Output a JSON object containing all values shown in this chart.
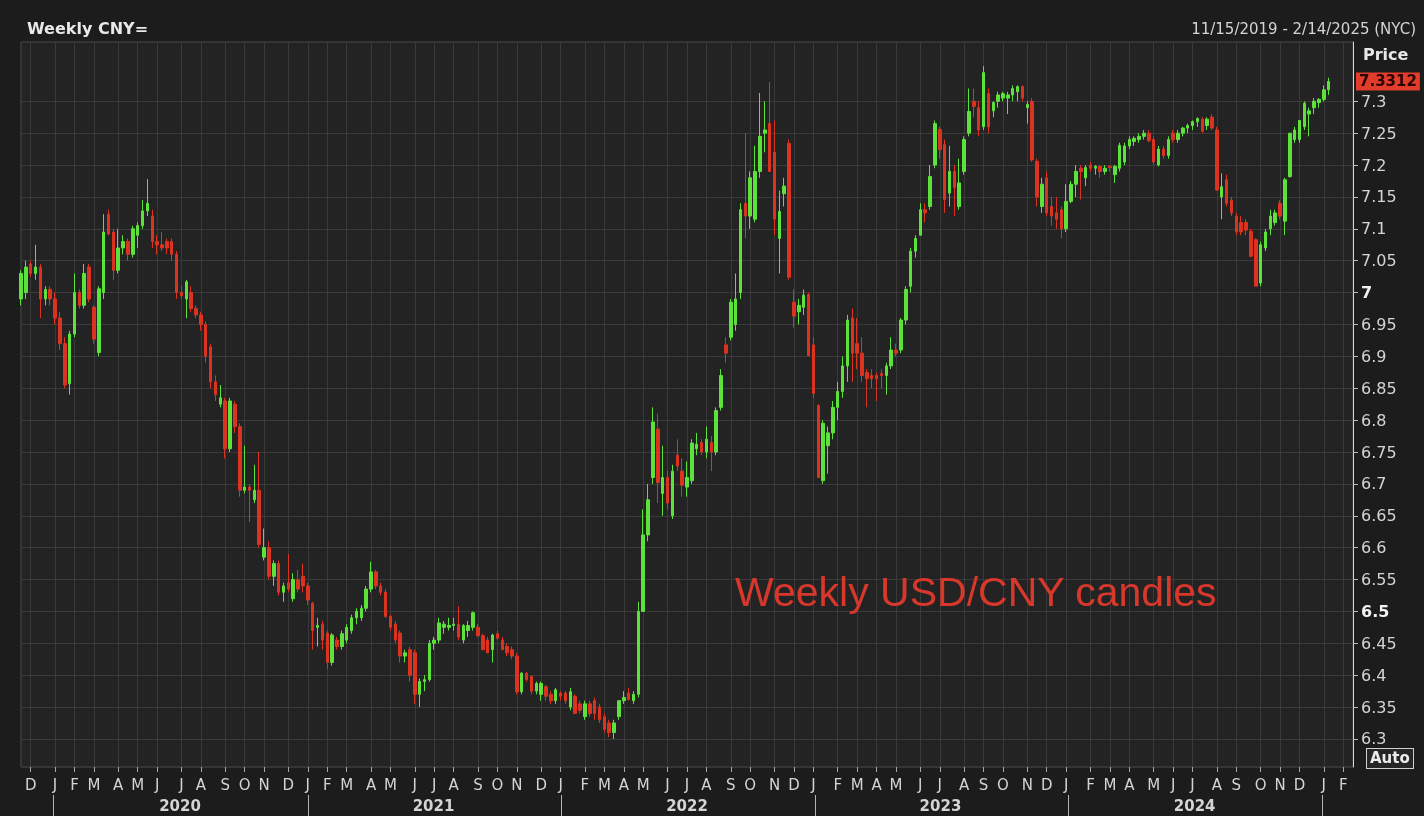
{
  "chart_data": {
    "type": "candlestick",
    "title": "Weekly CNY=",
    "subtitle": "11/15/2019 - 2/14/2025 (NYC)",
    "ylabel": "Price",
    "annotations": [
      "7.3312",
      "Weekly USD/CNY candles",
      "Auto"
    ],
    "categories": [
      null,
      null,
      "D",
      null,
      null,
      null,
      null,
      "J",
      null,
      null,
      null,
      "F",
      null,
      null,
      null,
      "M",
      null,
      null,
      null,
      null,
      "A",
      null,
      null,
      null,
      "M",
      null,
      null,
      null,
      "J",
      null,
      null,
      null,
      null,
      "J",
      null,
      null,
      null,
      "A",
      null,
      null,
      null,
      null,
      "S",
      null,
      null,
      null,
      "O",
      null,
      null,
      null,
      "N",
      null,
      null,
      null,
      null,
      "D",
      null,
      null,
      null,
      "J",
      null,
      null,
      null,
      "F",
      null,
      null,
      null,
      "M",
      null,
      null,
      null,
      null,
      "A",
      null,
      null,
      null,
      "M",
      null,
      null,
      null,
      null,
      "J",
      null,
      null,
      null,
      "J",
      null,
      null,
      null,
      "A",
      null,
      null,
      null,
      null,
      "S",
      null,
      null,
      null,
      "O",
      null,
      null,
      null,
      "N",
      null,
      null,
      null,
      null,
      "D",
      null,
      null,
      null,
      "J",
      null,
      null,
      null,
      null,
      "F",
      null,
      null,
      null,
      "M",
      null,
      null,
      null,
      "A",
      null,
      null,
      null,
      "M",
      null,
      null,
      null,
      null,
      "J",
      null,
      null,
      null,
      "J",
      null,
      null,
      null,
      "A",
      null,
      null,
      null,
      null,
      "S",
      null,
      null,
      null,
      "O",
      null,
      null,
      null,
      null,
      "N",
      null,
      null,
      null,
      "D",
      null,
      null,
      null,
      "J",
      null,
      null,
      null,
      null,
      "F",
      null,
      null,
      null,
      "M",
      null,
      null,
      null,
      "A",
      null,
      null,
      null,
      "M",
      null,
      null,
      null,
      null,
      "J",
      null,
      null,
      null,
      "J",
      null,
      null,
      null,
      null,
      "A",
      null,
      null,
      null,
      "S",
      null,
      null,
      null,
      "O",
      null,
      null,
      null,
      null,
      "N",
      null,
      null,
      null,
      "D",
      null,
      null,
      null,
      "J",
      null,
      null,
      null,
      null,
      "F",
      null,
      null,
      null,
      "M",
      null,
      null,
      null,
      "A",
      null,
      null,
      null,
      null,
      "M",
      null,
      null,
      null,
      "J",
      null,
      null,
      null,
      "J",
      null,
      null,
      null,
      null,
      "A",
      null,
      null,
      null,
      "S",
      null,
      null,
      null,
      null,
      "O",
      null,
      null,
      null,
      "N",
      null,
      null,
      null,
      "D",
      null,
      null,
      null,
      null,
      "J",
      null,
      null,
      null,
      "F",
      null,
      null
    ],
    "ohlc": [
      [
        6.99,
        7.035,
        6.98,
        7.03
      ],
      [
        7.0,
        7.05,
        6.99,
        7.04
      ],
      [
        7.045,
        7.05,
        7.025,
        7.03
      ],
      [
        7.03,
        7.075,
        7.02,
        7.04
      ],
      [
        7.04,
        7.045,
        6.96,
        6.99
      ],
      [
        6.99,
        7.01,
        6.98,
        7.005
      ],
      [
        7.005,
        7.01,
        6.98,
        6.99
      ],
      [
        6.99,
        7.0,
        6.95,
        6.96
      ],
      [
        6.96,
        6.97,
        6.91,
        6.92
      ],
      [
        6.92,
        6.93,
        6.85,
        6.855
      ],
      [
        6.857,
        6.94,
        6.84,
        6.935
      ],
      [
        6.935,
        7.03,
        6.93,
        7.0
      ],
      [
        7.0,
        7.005,
        6.975,
        6.98
      ],
      [
        6.98,
        7.045,
        6.975,
        7.03
      ],
      [
        7.04,
        7.045,
        6.985,
        6.99
      ],
      [
        6.977,
        6.98,
        6.92,
        6.927
      ],
      [
        6.906,
        7.01,
        6.9,
        7.006
      ],
      [
        7.0,
        7.123,
        6.99,
        7.095
      ],
      [
        7.123,
        7.13,
        7.09,
        7.092
      ],
      [
        7.095,
        7.1,
        7.02,
        7.035
      ],
      [
        7.035,
        7.1,
        7.03,
        7.07
      ],
      [
        7.07,
        7.09,
        7.06,
        7.08
      ],
      [
        7.08,
        7.085,
        7.05,
        7.06
      ],
      [
        7.06,
        7.105,
        7.055,
        7.1
      ],
      [
        7.09,
        7.11,
        7.07,
        7.105
      ],
      [
        7.105,
        7.145,
        7.1,
        7.128
      ],
      [
        7.128,
        7.178,
        7.12,
        7.14
      ],
      [
        7.12,
        7.13,
        7.07,
        7.08
      ],
      [
        7.08,
        7.09,
        7.06,
        7.075
      ],
      [
        7.075,
        7.095,
        7.065,
        7.07
      ],
      [
        7.08,
        7.085,
        7.06,
        7.07
      ],
      [
        7.08,
        7.085,
        7.05,
        7.06
      ],
      [
        7.06,
        7.065,
        6.99,
        7.0
      ],
      [
        7.0,
        7.01,
        6.99,
        6.995
      ],
      [
        6.99,
        7.02,
        6.96,
        7.017
      ],
      [
        7.0,
        7.01,
        6.97,
        6.975
      ],
      [
        6.975,
        6.98,
        6.96,
        6.965
      ],
      [
        6.965,
        6.97,
        6.94,
        6.95
      ],
      [
        6.95,
        6.955,
        6.89,
        6.9
      ],
      [
        6.915,
        6.92,
        6.85,
        6.86
      ],
      [
        6.86,
        6.87,
        6.83,
        6.84
      ],
      [
        6.825,
        6.855,
        6.82,
        6.835
      ],
      [
        6.83,
        6.835,
        6.74,
        6.755
      ],
      [
        6.755,
        6.835,
        6.75,
        6.83
      ],
      [
        6.825,
        6.83,
        6.78,
        6.79
      ],
      [
        6.79,
        6.795,
        6.68,
        6.69
      ],
      [
        6.69,
        6.76,
        6.685,
        6.695
      ],
      [
        6.695,
        6.7,
        6.64,
        6.69
      ],
      [
        6.675,
        6.73,
        6.67,
        6.69
      ],
      [
        6.69,
        6.75,
        6.6,
        6.605
      ],
      [
        6.585,
        6.63,
        6.58,
        6.6
      ],
      [
        6.6,
        6.61,
        6.55,
        6.555
      ],
      [
        6.555,
        6.58,
        6.54,
        6.575
      ],
      [
        6.575,
        6.58,
        6.525,
        6.53
      ],
      [
        6.53,
        6.545,
        6.515,
        6.54
      ],
      [
        6.545,
        6.59,
        6.53,
        6.535
      ],
      [
        6.52,
        6.56,
        6.515,
        6.55
      ],
      [
        6.55,
        6.565,
        6.53,
        6.535
      ],
      [
        6.555,
        6.575,
        6.53,
        6.54
      ],
      [
        6.54,
        6.545,
        6.51,
        6.518
      ],
      [
        6.513,
        6.515,
        6.44,
        6.47
      ],
      [
        6.475,
        6.49,
        6.445,
        6.478
      ],
      [
        6.48,
        6.485,
        6.44,
        6.455
      ],
      [
        6.466,
        6.47,
        6.41,
        6.42
      ],
      [
        6.42,
        6.466,
        6.415,
        6.463
      ],
      [
        6.455,
        6.46,
        6.44,
        6.445
      ],
      [
        6.445,
        6.47,
        6.44,
        6.465
      ],
      [
        6.455,
        6.48,
        6.45,
        6.475
      ],
      [
        6.47,
        6.495,
        6.465,
        6.49
      ],
      [
        6.49,
        6.505,
        6.48,
        6.5
      ],
      [
        6.49,
        6.51,
        6.485,
        6.505
      ],
      [
        6.505,
        6.54,
        6.5,
        6.535
      ],
      [
        6.535,
        6.578,
        6.53,
        6.562
      ],
      [
        6.562,
        6.565,
        6.535,
        6.54
      ],
      [
        6.54,
        6.545,
        6.525,
        6.53
      ],
      [
        6.53,
        6.535,
        6.49,
        6.492
      ],
      [
        6.492,
        6.495,
        6.47,
        6.475
      ],
      [
        6.48,
        6.485,
        6.45,
        6.455
      ],
      [
        6.466,
        6.47,
        6.42,
        6.43
      ],
      [
        6.43,
        6.44,
        6.42,
        6.435
      ],
      [
        6.44,
        6.445,
        6.39,
        6.4
      ],
      [
        6.435,
        6.44,
        6.355,
        6.37
      ],
      [
        6.37,
        6.395,
        6.35,
        6.39
      ],
      [
        6.39,
        6.4,
        6.375,
        6.393
      ],
      [
        6.393,
        6.455,
        6.39,
        6.45
      ],
      [
        6.45,
        6.46,
        6.44,
        6.455
      ],
      [
        6.455,
        6.49,
        6.45,
        6.482
      ],
      [
        6.475,
        6.485,
        6.465,
        6.48
      ],
      [
        6.475,
        6.49,
        6.47,
        6.478
      ],
      [
        6.478,
        6.49,
        6.47,
        6.48
      ],
      [
        6.48,
        6.508,
        6.455,
        6.46
      ],
      [
        6.455,
        6.48,
        6.45,
        6.478
      ],
      [
        6.47,
        6.485,
        6.46,
        6.478
      ],
      [
        6.475,
        6.5,
        6.47,
        6.498
      ],
      [
        6.475,
        6.48,
        6.46,
        6.462
      ],
      [
        6.462,
        6.465,
        6.44,
        6.44
      ],
      [
        6.455,
        6.46,
        6.435,
        6.435
      ],
      [
        6.44,
        6.465,
        6.42,
        6.463
      ],
      [
        6.465,
        6.47,
        6.455,
        6.458
      ],
      [
        6.455,
        6.46,
        6.44,
        6.44
      ],
      [
        6.445,
        6.45,
        6.43,
        6.435
      ],
      [
        6.44,
        6.445,
        6.425,
        6.43
      ],
      [
        6.43,
        6.435,
        6.37,
        6.374
      ],
      [
        6.374,
        6.405,
        6.37,
        6.403
      ],
      [
        6.403,
        6.405,
        6.39,
        6.393
      ],
      [
        6.398,
        6.4,
        6.37,
        6.375
      ],
      [
        6.375,
        6.39,
        6.37,
        6.387
      ],
      [
        6.37,
        6.39,
        6.36,
        6.387
      ],
      [
        6.382,
        6.385,
        6.36,
        6.367
      ],
      [
        6.37,
        6.375,
        6.355,
        6.36
      ],
      [
        6.36,
        6.38,
        6.355,
        6.377
      ],
      [
        6.372,
        6.375,
        6.36,
        6.367
      ],
      [
        6.372,
        6.375,
        6.355,
        6.36
      ],
      [
        6.35,
        6.38,
        6.345,
        6.374
      ],
      [
        6.367,
        6.37,
        6.34,
        6.34
      ],
      [
        6.355,
        6.36,
        6.34,
        6.345
      ],
      [
        6.335,
        6.36,
        6.33,
        6.355
      ],
      [
        6.355,
        6.36,
        6.335,
        6.34
      ],
      [
        6.36,
        6.365,
        6.33,
        6.34
      ],
      [
        6.35,
        6.355,
        6.325,
        6.33
      ],
      [
        6.335,
        6.34,
        6.31,
        6.315
      ],
      [
        6.325,
        6.33,
        6.303,
        6.31
      ],
      [
        6.31,
        6.33,
        6.3,
        6.325
      ],
      [
        6.335,
        6.36,
        6.33,
        6.36
      ],
      [
        6.36,
        6.375,
        6.355,
        6.365
      ],
      [
        6.372,
        6.38,
        6.36,
        6.362
      ],
      [
        6.36,
        6.375,
        6.355,
        6.37
      ],
      [
        6.37,
        6.515,
        6.365,
        6.5
      ],
      [
        6.5,
        6.66,
        6.5,
        6.62
      ],
      [
        6.62,
        6.7,
        6.61,
        6.675
      ],
      [
        6.71,
        6.82,
        6.7,
        6.797
      ],
      [
        6.786,
        6.81,
        6.67,
        6.702
      ],
      [
        6.685,
        6.76,
        6.65,
        6.71
      ],
      [
        6.71,
        6.72,
        6.66,
        6.67
      ],
      [
        6.65,
        6.73,
        6.645,
        6.72
      ],
      [
        6.745,
        6.77,
        6.72,
        6.728
      ],
      [
        6.72,
        6.74,
        6.68,
        6.698
      ],
      [
        6.695,
        6.735,
        6.68,
        6.71
      ],
      [
        6.705,
        6.77,
        6.7,
        6.764
      ],
      [
        6.755,
        6.78,
        6.745,
        6.762
      ],
      [
        6.765,
        6.77,
        6.745,
        6.75
      ],
      [
        6.75,
        6.79,
        6.74,
        6.77
      ],
      [
        6.765,
        6.775,
        6.72,
        6.75
      ],
      [
        6.75,
        6.82,
        6.745,
        6.815
      ],
      [
        6.82,
        6.88,
        6.815,
        6.87
      ],
      [
        6.918,
        6.93,
        6.89,
        6.905
      ],
      [
        6.93,
        6.99,
        6.925,
        6.985
      ],
      [
        6.95,
        7.03,
        6.94,
        6.99
      ],
      [
        7.0,
        7.14,
        6.99,
        7.13
      ],
      [
        7.14,
        7.25,
        7.085,
        7.12
      ],
      [
        7.12,
        7.19,
        7.1,
        7.18
      ],
      [
        7.115,
        7.23,
        7.11,
        7.19
      ],
      [
        7.19,
        7.313,
        7.18,
        7.245
      ],
      [
        7.25,
        7.3,
        7.22,
        7.255
      ],
      [
        7.265,
        7.33,
        7.19,
        7.19
      ],
      [
        7.22,
        7.27,
        7.09,
        7.115
      ],
      [
        7.085,
        7.16,
        7.03,
        7.127
      ],
      [
        7.155,
        7.18,
        7.135,
        7.167
      ],
      [
        7.234,
        7.24,
        7.02,
        7.024
      ],
      [
        6.985,
        7.005,
        6.945,
        6.963
      ],
      [
        6.97,
        6.99,
        6.95,
        6.98
      ],
      [
        6.977,
        7.005,
        6.965,
        6.996
      ],
      [
        6.997,
        7.0,
        6.9,
        6.901
      ],
      [
        6.918,
        6.93,
        6.835,
        6.842
      ],
      [
        6.823,
        6.825,
        6.71,
        6.71
      ],
      [
        6.705,
        6.8,
        6.7,
        6.795
      ],
      [
        6.76,
        6.79,
        6.716,
        6.78
      ],
      [
        6.78,
        6.83,
        6.77,
        6.82
      ],
      [
        6.82,
        6.86,
        6.8,
        6.845
      ],
      [
        6.845,
        6.9,
        6.835,
        6.885
      ],
      [
        6.885,
        6.965,
        6.86,
        6.957
      ],
      [
        6.96,
        6.975,
        6.86,
        6.905
      ],
      [
        6.92,
        6.96,
        6.88,
        6.905
      ],
      [
        6.905,
        6.93,
        6.86,
        6.87
      ],
      [
        6.875,
        6.88,
        6.82,
        6.865
      ],
      [
        6.87,
        6.88,
        6.85,
        6.865
      ],
      [
        6.87,
        6.875,
        6.83,
        6.865
      ],
      [
        6.873,
        6.88,
        6.85,
        6.87
      ],
      [
        6.87,
        6.89,
        6.84,
        6.885
      ],
      [
        6.885,
        6.93,
        6.88,
        6.91
      ],
      [
        6.91,
        6.92,
        6.9,
        6.905
      ],
      [
        6.91,
        6.96,
        6.905,
        6.957
      ],
      [
        6.957,
        7.01,
        6.95,
        7.005
      ],
      [
        7.01,
        7.07,
        7.0,
        7.065
      ],
      [
        7.065,
        7.09,
        7.055,
        7.085
      ],
      [
        7.09,
        7.14,
        7.09,
        7.13
      ],
      [
        7.13,
        7.14,
        7.11,
        7.125
      ],
      [
        7.135,
        7.2,
        7.13,
        7.182
      ],
      [
        7.2,
        7.27,
        7.195,
        7.265
      ],
      [
        7.256,
        7.26,
        7.21,
        7.224
      ],
      [
        7.232,
        7.24,
        7.125,
        7.146
      ],
      [
        7.156,
        7.23,
        7.135,
        7.19
      ],
      [
        7.19,
        7.2,
        7.12,
        7.165
      ],
      [
        7.135,
        7.21,
        7.13,
        7.172
      ],
      [
        7.19,
        7.245,
        7.185,
        7.24
      ],
      [
        7.25,
        7.32,
        7.245,
        7.284
      ],
      [
        7.3,
        7.32,
        7.275,
        7.292
      ],
      [
        7.29,
        7.3,
        7.245,
        7.255
      ],
      [
        7.26,
        7.355,
        7.255,
        7.345
      ],
      [
        7.312,
        7.32,
        7.25,
        7.26
      ],
      [
        7.285,
        7.3,
        7.275,
        7.298
      ],
      [
        7.3,
        7.315,
        7.29,
        7.31
      ],
      [
        7.305,
        7.315,
        7.3,
        7.312
      ],
      [
        7.305,
        7.315,
        7.28,
        7.31
      ],
      [
        7.31,
        7.325,
        7.3,
        7.32
      ],
      [
        7.315,
        7.325,
        7.3,
        7.323
      ],
      [
        7.323,
        7.325,
        7.3,
        7.305
      ],
      [
        7.29,
        7.3,
        7.265,
        7.295
      ],
      [
        7.3,
        7.305,
        7.205,
        7.208
      ],
      [
        7.206,
        7.21,
        7.135,
        7.15
      ],
      [
        7.135,
        7.18,
        7.125,
        7.17
      ],
      [
        7.18,
        7.19,
        7.12,
        7.125
      ],
      [
        7.135,
        7.15,
        7.105,
        7.12
      ],
      [
        7.125,
        7.15,
        7.1,
        7.115
      ],
      [
        7.13,
        7.135,
        7.085,
        7.1
      ],
      [
        7.1,
        7.17,
        7.095,
        7.143
      ],
      [
        7.143,
        7.175,
        7.14,
        7.17
      ],
      [
        7.17,
        7.2,
        7.15,
        7.19
      ],
      [
        7.195,
        7.2,
        7.146,
        7.19
      ],
      [
        7.18,
        7.2,
        7.167,
        7.196
      ],
      [
        7.2,
        7.205,
        7.19,
        7.195
      ],
      [
        7.195,
        7.2,
        7.185,
        7.198
      ],
      [
        7.198,
        7.2,
        7.18,
        7.19
      ],
      [
        7.19,
        7.2,
        7.185,
        7.195
      ],
      [
        7.198,
        7.2,
        7.19,
        7.196
      ],
      [
        7.185,
        7.2,
        7.172,
        7.198
      ],
      [
        7.195,
        7.235,
        7.19,
        7.231
      ],
      [
        7.205,
        7.235,
        7.2,
        7.23
      ],
      [
        7.23,
        7.245,
        7.225,
        7.24
      ],
      [
        7.237,
        7.245,
        7.23,
        7.242
      ],
      [
        7.24,
        7.25,
        7.235,
        7.245
      ],
      [
        7.245,
        7.255,
        7.24,
        7.25
      ],
      [
        7.25,
        7.255,
        7.236,
        7.238
      ],
      [
        7.24,
        7.245,
        7.2,
        7.205
      ],
      [
        7.2,
        7.23,
        7.198,
        7.225
      ],
      [
        7.225,
        7.23,
        7.21,
        7.215
      ],
      [
        7.215,
        7.245,
        7.21,
        7.24
      ],
      [
        7.25,
        7.255,
        7.235,
        7.24
      ],
      [
        7.24,
        7.255,
        7.235,
        7.25
      ],
      [
        7.25,
        7.26,
        7.245,
        7.258
      ],
      [
        7.258,
        7.265,
        7.25,
        7.262
      ],
      [
        7.262,
        7.27,
        7.255,
        7.268
      ],
      [
        7.268,
        7.275,
        7.26,
        7.273
      ],
      [
        7.272,
        7.275,
        7.25,
        7.253
      ],
      [
        7.262,
        7.275,
        7.255,
        7.272
      ],
      [
        7.275,
        7.28,
        7.255,
        7.258
      ],
      [
        7.255,
        7.26,
        7.16,
        7.161
      ],
      [
        7.15,
        7.187,
        7.115,
        7.166
      ],
      [
        7.177,
        7.185,
        7.135,
        7.14
      ],
      [
        7.145,
        7.15,
        7.12,
        7.125
      ],
      [
        7.12,
        7.125,
        7.09,
        7.095
      ],
      [
        7.11,
        7.12,
        7.09,
        7.095
      ],
      [
        7.11,
        7.115,
        7.09,
        7.098
      ],
      [
        7.096,
        7.1,
        7.055,
        7.057
      ],
      [
        7.083,
        7.085,
        7.01,
        7.01
      ],
      [
        7.015,
        7.08,
        7.01,
        7.075
      ],
      [
        7.07,
        7.1,
        7.065,
        7.095
      ],
      [
        7.1,
        7.13,
        7.09,
        7.12
      ],
      [
        7.11,
        7.13,
        7.105,
        7.125
      ],
      [
        7.14,
        7.145,
        7.115,
        7.12
      ],
      [
        7.112,
        7.18,
        7.09,
        7.177
      ],
      [
        7.182,
        7.25,
        7.18,
        7.25
      ],
      [
        7.24,
        7.26,
        7.235,
        7.255
      ],
      [
        7.24,
        7.27,
        7.235,
        7.27
      ],
      [
        7.26,
        7.3,
        7.255,
        7.297
      ],
      [
        7.28,
        7.29,
        7.245,
        7.285
      ],
      [
        7.29,
        7.305,
        7.28,
        7.3
      ],
      [
        7.298,
        7.305,
        7.29,
        7.303
      ],
      [
        7.303,
        7.325,
        7.3,
        7.318
      ],
      [
        7.318,
        7.337,
        7.31,
        7.3312
      ],
      null,
      null,
      null,
      null,
      null
    ],
    "colors": [
      "#5de23b",
      "#5de23b",
      "#dc3320",
      "#5de23b",
      "#dc3320",
      "#5de23b",
      "#dc3320",
      "#dc3320",
      "#dc3320",
      "#dc3320",
      "#5de23b",
      "#5de23b",
      "#dc3320",
      "#5de23b",
      "#dc3320",
      "#dc3320",
      "#5de23b",
      "#5de23b",
      "#dc3320",
      "#dc3320",
      "#5de23b",
      "#5de23b",
      "#dc3320",
      "#5de23b",
      "#5de23b",
      "#5de23b",
      "#5de23b",
      "#dc3320",
      "#dc3320",
      "#dc3320",
      "#dc3320",
      "#dc3320",
      "#dc3320",
      "#dc3320",
      "#5de23b",
      "#dc3320",
      "#dc3320",
      "#dc3320",
      "#dc3320",
      "#dc3320",
      "#dc3320",
      "#5de23b",
      "#dc3320",
      "#5de23b",
      "#dc3320",
      "#dc3320",
      "#5de23b",
      "#dc3320",
      "#5de23b",
      "#dc3320",
      "#5de23b",
      "#dc3320",
      "#5de23b",
      "#dc3320",
      "#5de23b",
      "#dc3320",
      "#5de23b",
      "#dc3320",
      "#dc3320",
      "#dc3320",
      "#dc3320",
      "#5de23b",
      "#dc3320",
      "#dc3320",
      "#5de23b",
      "#dc3320",
      "#5de23b",
      "#5de23b",
      "#5de23b",
      "#5de23b",
      "#5de23b",
      "#5de23b",
      "#5de23b",
      "#dc3320",
      "#dc3320",
      "#dc3320",
      "#dc3320",
      "#dc3320",
      "#dc3320",
      "#5de23b",
      "#dc3320",
      "#dc3320",
      "#5de23b",
      "#5de23b",
      "#5de23b",
      "#5de23b",
      "#5de23b",
      "#5de23b",
      "#5de23b",
      "#5de23b",
      "#dc3320",
      "#5de23b",
      "#5de23b",
      "#5de23b",
      "#dc3320",
      "#dc3320",
      "#dc3320",
      "#5de23b",
      "#dc3320",
      "#dc3320",
      "#dc3320",
      "#dc3320",
      "#dc3320",
      "#5de23b",
      "#dc3320",
      "#dc3320",
      "#5de23b",
      "#5de23b",
      "#dc3320",
      "#dc3320",
      "#5de23b",
      "#dc3320",
      "#dc3320",
      "#5de23b",
      "#dc3320",
      "#dc3320",
      "#5de23b",
      "#dc3320",
      "#dc3320",
      "#dc3320",
      "#dc3320",
      "#dc3320",
      "#5de23b",
      "#5de23b",
      "#5de23b",
      "#dc3320",
      "#5de23b",
      "#5de23b",
      "#5de23b",
      "#5de23b",
      "#5de23b",
      "#dc3320",
      "#5de23b",
      "#dc3320",
      "#5de23b",
      "#dc3320",
      "#dc3320",
      "#5de23b",
      "#5de23b",
      "#5de23b",
      "#dc3320",
      "#5de23b",
      "#dc3320",
      "#5de23b",
      "#5de23b",
      "#dc3320",
      "#5de23b",
      "#5de23b",
      "#5de23b",
      "#dc3320",
      "#5de23b",
      "#5de23b",
      "#5de23b",
      "#5de23b",
      "#dc3320",
      "#dc3320",
      "#5de23b",
      "#5de23b",
      "#dc3320",
      "#dc3320",
      "#5de23b",
      "#5de23b",
      "#dc3320",
      "#dc3320",
      "#dc3320",
      "#5de23b",
      "#5de23b",
      "#5de23b",
      "#5de23b",
      "#5de23b",
      "#5de23b",
      "#dc3320",
      "#dc3320",
      "#dc3320",
      "#dc3320",
      "#dc3320",
      "#dc3320",
      "#dc3320",
      "#5de23b",
      "#5de23b",
      "#dc3320",
      "#5de23b",
      "#5de23b",
      "#5de23b",
      "#5de23b",
      "#5de23b",
      "#dc3320",
      "#5de23b",
      "#5de23b",
      "#dc3320",
      "#dc3320",
      "#5de23b",
      "#dc3320",
      "#5de23b",
      "#5de23b",
      "#5de23b",
      "#dc3320",
      "#dc3320",
      "#5de23b",
      "#dc3320",
      "#5de23b",
      "#5de23b",
      "#5de23b",
      "#5de23b",
      "#5de23b",
      "#5de23b",
      "#dc3320",
      "#5de23b",
      "#dc3320",
      "#dc3320",
      "#5de23b",
      "#dc3320",
      "#dc3320",
      "#dc3320",
      "#dc3320",
      "#5de23b",
      "#5de23b",
      "#5de23b",
      "#dc3320",
      "#5de23b",
      "#dc3320",
      "#5de23b",
      "#dc3320",
      "#5de23b",
      "#dc3320",
      "#5de23b",
      "#5de23b",
      "#5de23b",
      "#5de23b",
      "#5de23b",
      "#5de23b",
      "#5de23b",
      "#dc3320",
      "#dc3320",
      "#5de23b",
      "#dc3320",
      "#5de23b",
      "#dc3320",
      "#5de23b",
      "#5de23b",
      "#5de23b",
      "#5de23b",
      "#5de23b",
      "#dc3320",
      "#5de23b",
      "#dc3320",
      "#dc3320",
      "#5de23b",
      "#dc3320",
      "#dc3320",
      "#dc3320",
      "#dc3320",
      "#dc3320",
      "#dc3320",
      "#dc3320",
      "#5de23b",
      "#5de23b",
      "#5de23b",
      "#5de23b",
      "#dc3320",
      "#5de23b",
      "#5de23b",
      "#5de23b",
      "#5de23b",
      "#5de23b",
      "#5de23b",
      "#5de23b",
      "#5de23b",
      "#5de23b",
      "#5de23b",
      null,
      null,
      null,
      null,
      null
    ],
    "x2lim": [
      "2019-11-15",
      "2025-02-14"
    ],
    "x2ticks": [
      {
        "value": "2020-01-01",
        "label": null
      },
      {
        "value": "2020-07-01",
        "label": "2020"
      },
      {
        "value": "2021-01-01",
        "label": null
      },
      {
        "value": "2021-07-01",
        "label": "2021"
      },
      {
        "value": "2022-01-01",
        "label": null
      },
      {
        "value": "2022-07-01",
        "label": "2022"
      },
      {
        "value": "2023-01-01",
        "label": null
      },
      {
        "value": "2023-07-01",
        "label": "2023"
      },
      {
        "value": "2024-01-01",
        "label": null
      },
      {
        "value": "2024-07-01",
        "label": "2024"
      },
      {
        "value": "2025-01-01",
        "label": null
      }
    ],
    "ylim": [
      6.256,
      7.393
    ],
    "yticks": [
      6.3,
      6.35,
      6.4,
      6.45,
      6.5,
      6.55,
      6.6,
      6.65,
      6.7,
      6.75,
      6.8,
      6.85,
      6.9,
      6.95,
      7,
      7.05,
      7.1,
      7.15,
      7.2,
      7.25,
      7.3
    ],
    "grid": true
  }
}
